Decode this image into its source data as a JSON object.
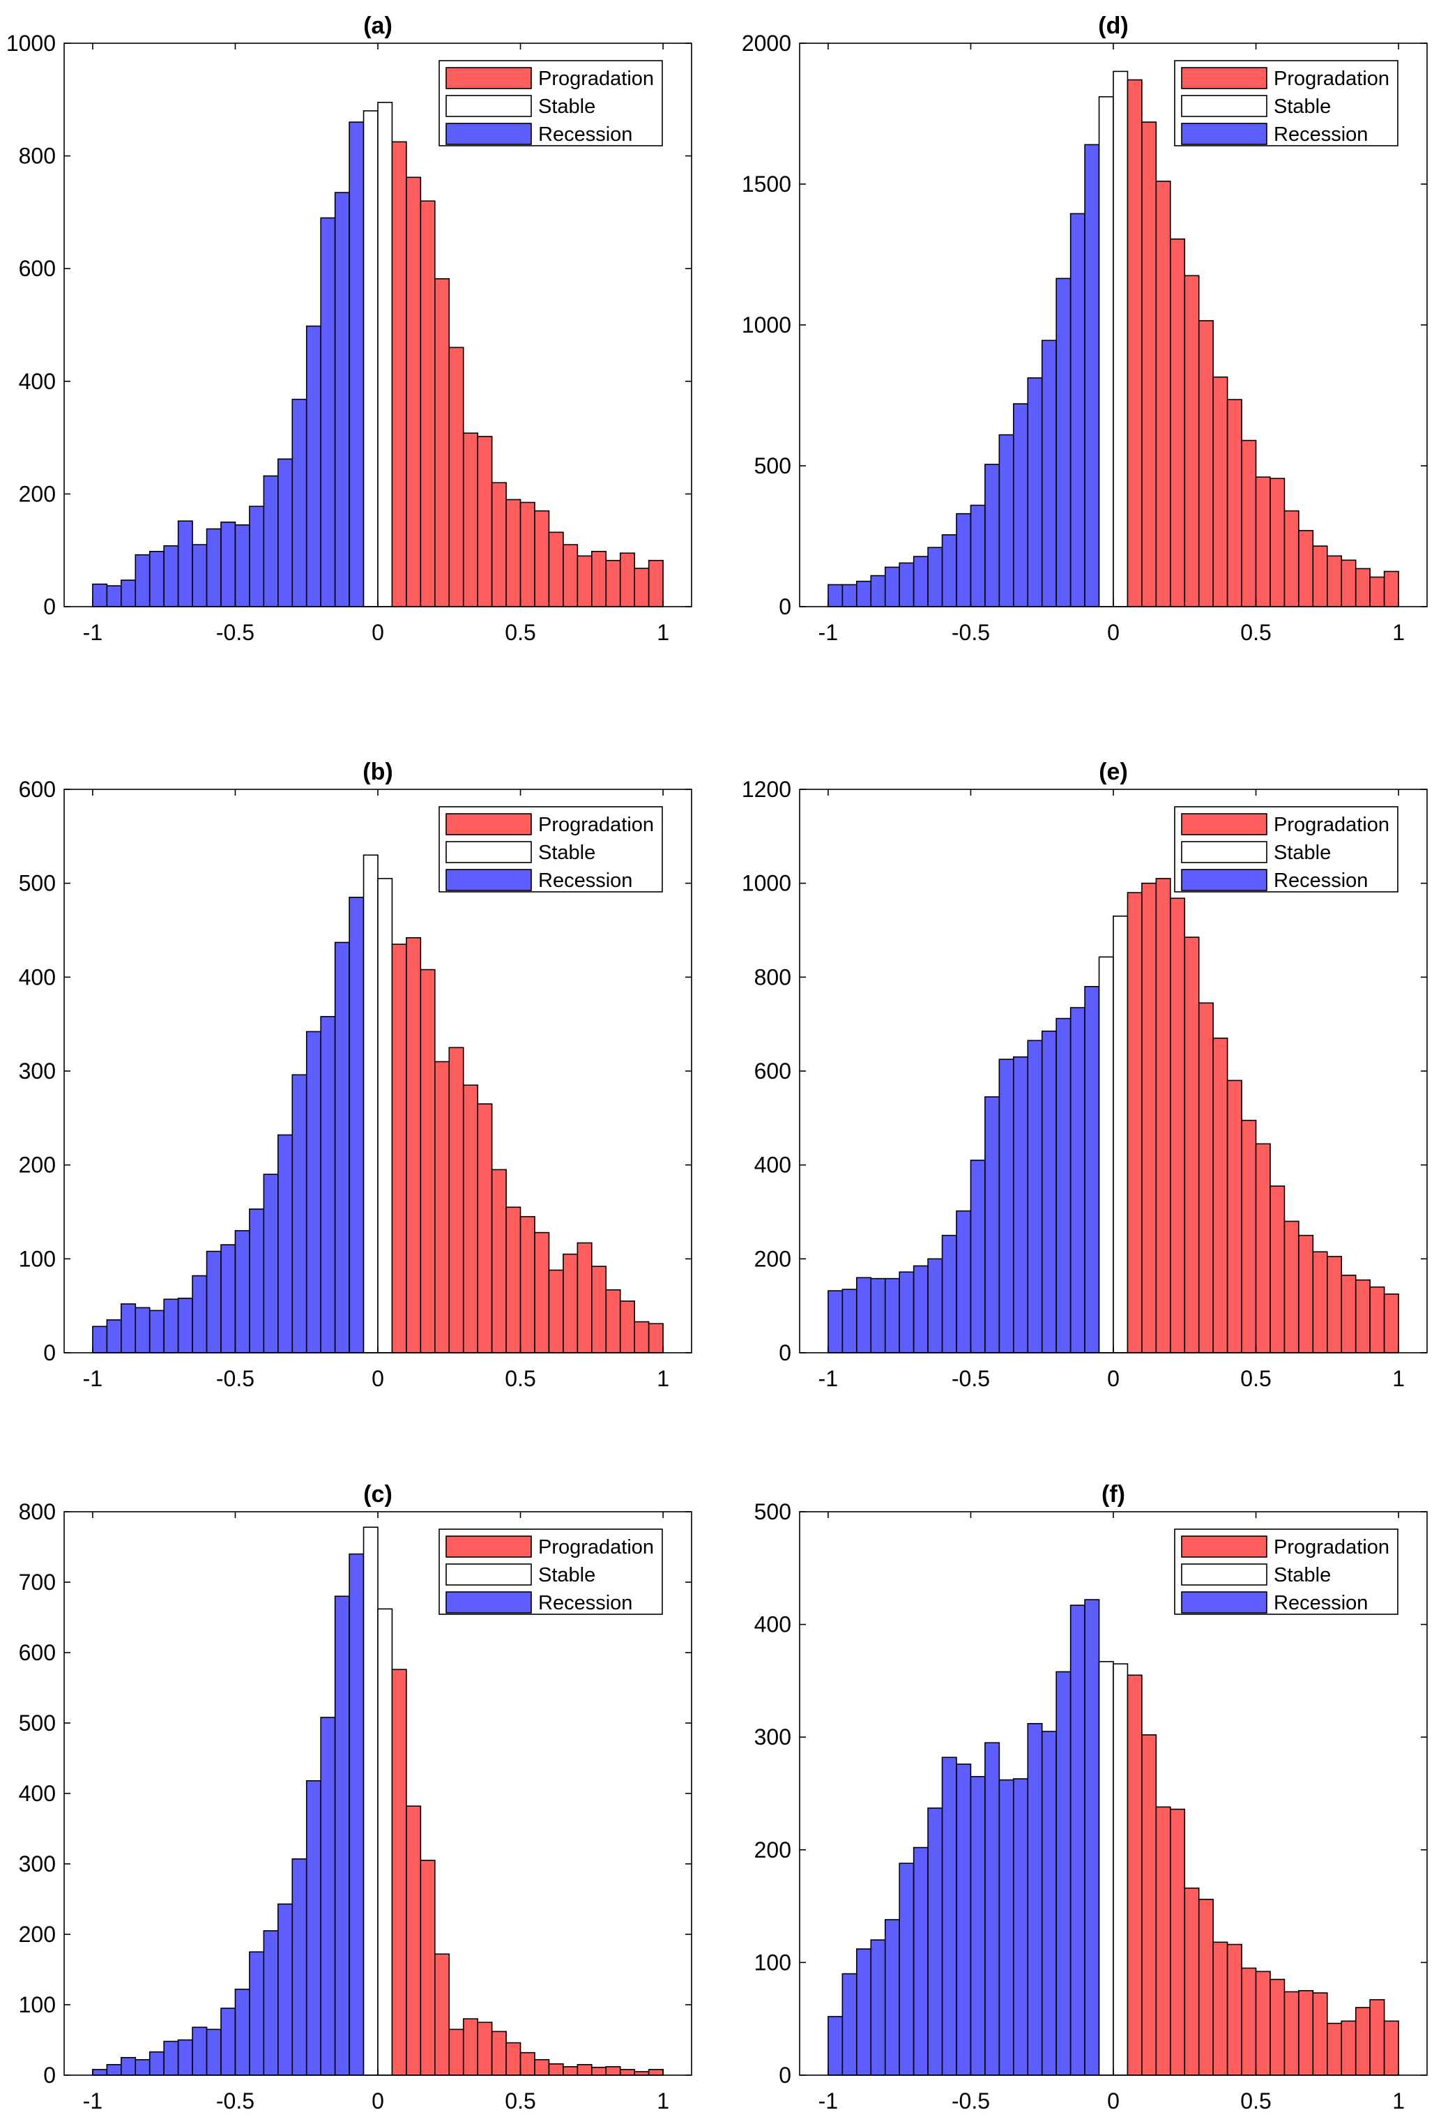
{
  "chart_data": [
    {
      "id": "a",
      "type": "bar",
      "title": "(a)",
      "xlabel": "",
      "ylabel": "",
      "xlim": [
        -1.1,
        1.1
      ],
      "ylim": [
        0,
        1000
      ],
      "xticks": [
        "-1",
        "-0.5",
        "0",
        "0.5",
        "1"
      ],
      "yticks": [
        "0",
        "200",
        "400",
        "600",
        "800",
        "1000"
      ],
      "ytick_values": [
        0,
        200,
        400,
        600,
        800,
        1000
      ],
      "bin_start": -1.0,
      "bin_width": 0.05,
      "values": [
        40,
        37,
        47,
        92,
        98,
        108,
        152,
        110,
        138,
        150,
        145,
        178,
        232,
        262,
        368,
        498,
        690,
        735,
        860,
        880,
        895,
        825,
        762,
        720,
        582,
        460,
        308,
        302,
        220,
        190,
        185,
        170,
        132,
        110,
        90,
        98,
        82,
        95,
        68,
        82
      ],
      "categories": [
        "Recession",
        "Recession",
        "Recession",
        "Recession",
        "Recession",
        "Recession",
        "Recession",
        "Recession",
        "Recession",
        "Recession",
        "Recession",
        "Recession",
        "Recession",
        "Recession",
        "Recession",
        "Recession",
        "Recession",
        "Recession",
        "Recession",
        "Stable",
        "Stable",
        "Progradation",
        "Progradation",
        "Progradation",
        "Progradation",
        "Progradation",
        "Progradation",
        "Progradation",
        "Progradation",
        "Progradation",
        "Progradation",
        "Progradation",
        "Progradation",
        "Progradation",
        "Progradation",
        "Progradation",
        "Progradation",
        "Progradation",
        "Progradation",
        "Progradation"
      ],
      "legend": [
        "Progradation",
        "Stable",
        "Recession"
      ],
      "legend_position": "top-right",
      "grid": false
    },
    {
      "id": "d",
      "type": "bar",
      "title": "(d)",
      "xlabel": "",
      "ylabel": "",
      "xlim": [
        -1.1,
        1.1
      ],
      "ylim": [
        0,
        2000
      ],
      "xticks": [
        "-1",
        "-0.5",
        "0",
        "0.5",
        "1"
      ],
      "yticks": [
        "0",
        "500",
        "1000",
        "1500",
        "2000"
      ],
      "ytick_values": [
        0,
        500,
        1000,
        1500,
        2000
      ],
      "bin_start": -1.0,
      "bin_width": 0.05,
      "values": [
        78,
        78,
        90,
        110,
        140,
        155,
        178,
        210,
        255,
        330,
        360,
        505,
        610,
        720,
        812,
        945,
        1165,
        1395,
        1640,
        1810,
        1900,
        1870,
        1720,
        1510,
        1305,
        1175,
        1015,
        815,
        735,
        590,
        460,
        455,
        340,
        270,
        215,
        180,
        165,
        135,
        105,
        125
      ],
      "categories": [
        "Recession",
        "Recession",
        "Recession",
        "Recession",
        "Recession",
        "Recession",
        "Recession",
        "Recession",
        "Recession",
        "Recession",
        "Recession",
        "Recession",
        "Recession",
        "Recession",
        "Recession",
        "Recession",
        "Recession",
        "Recession",
        "Recession",
        "Stable",
        "Stable",
        "Progradation",
        "Progradation",
        "Progradation",
        "Progradation",
        "Progradation",
        "Progradation",
        "Progradation",
        "Progradation",
        "Progradation",
        "Progradation",
        "Progradation",
        "Progradation",
        "Progradation",
        "Progradation",
        "Progradation",
        "Progradation",
        "Progradation",
        "Progradation",
        "Progradation"
      ],
      "legend": [
        "Progradation",
        "Stable",
        "Recession"
      ],
      "legend_position": "top-right",
      "grid": false
    },
    {
      "id": "b",
      "type": "bar",
      "title": "(b)",
      "xlabel": "",
      "ylabel": "",
      "xlim": [
        -1.1,
        1.1
      ],
      "ylim": [
        0,
        600
      ],
      "xticks": [
        "-1",
        "-0.5",
        "0",
        "0.5",
        "1"
      ],
      "yticks": [
        "0",
        "100",
        "200",
        "300",
        "400",
        "500",
        "600"
      ],
      "ytick_values": [
        0,
        100,
        200,
        300,
        400,
        500,
        600
      ],
      "bin_start": -1.0,
      "bin_width": 0.05,
      "values": [
        28,
        35,
        52,
        48,
        45,
        57,
        58,
        82,
        108,
        115,
        130,
        153,
        190,
        232,
        296,
        342,
        358,
        437,
        485,
        530,
        505,
        435,
        442,
        408,
        310,
        325,
        285,
        265,
        195,
        155,
        145,
        128,
        88,
        105,
        117,
        92,
        67,
        55,
        33,
        31
      ],
      "categories": [
        "Recession",
        "Recession",
        "Recession",
        "Recession",
        "Recession",
        "Recession",
        "Recession",
        "Recession",
        "Recession",
        "Recession",
        "Recession",
        "Recession",
        "Recession",
        "Recession",
        "Recession",
        "Recession",
        "Recession",
        "Recession",
        "Recession",
        "Stable",
        "Stable",
        "Progradation",
        "Progradation",
        "Progradation",
        "Progradation",
        "Progradation",
        "Progradation",
        "Progradation",
        "Progradation",
        "Progradation",
        "Progradation",
        "Progradation",
        "Progradation",
        "Progradation",
        "Progradation",
        "Progradation",
        "Progradation",
        "Progradation",
        "Progradation",
        "Progradation"
      ],
      "legend": [
        "Progradation",
        "Stable",
        "Recession"
      ],
      "legend_position": "top-right",
      "grid": false
    },
    {
      "id": "e",
      "type": "bar",
      "title": "(e)",
      "xlabel": "",
      "ylabel": "",
      "xlim": [
        -1.1,
        1.1
      ],
      "ylim": [
        0,
        1200
      ],
      "xticks": [
        "-1",
        "-0.5",
        "0",
        "0.5",
        "1"
      ],
      "yticks": [
        "0",
        "200",
        "400",
        "600",
        "800",
        "1000",
        "1200"
      ],
      "ytick_values": [
        0,
        200,
        400,
        600,
        800,
        1000,
        1200
      ],
      "bin_start": -1.0,
      "bin_width": 0.05,
      "values": [
        132,
        135,
        160,
        158,
        158,
        172,
        185,
        200,
        250,
        302,
        410,
        545,
        625,
        630,
        665,
        685,
        712,
        735,
        780,
        843,
        930,
        980,
        1000,
        1010,
        968,
        885,
        745,
        670,
        580,
        495,
        445,
        355,
        280,
        250,
        215,
        205,
        165,
        155,
        140,
        125
      ],
      "categories": [
        "Recession",
        "Recession",
        "Recession",
        "Recession",
        "Recession",
        "Recession",
        "Recession",
        "Recession",
        "Recession",
        "Recession",
        "Recession",
        "Recession",
        "Recession",
        "Recession",
        "Recession",
        "Recession",
        "Recession",
        "Recession",
        "Recession",
        "Stable",
        "Stable",
        "Progradation",
        "Progradation",
        "Progradation",
        "Progradation",
        "Progradation",
        "Progradation",
        "Progradation",
        "Progradation",
        "Progradation",
        "Progradation",
        "Progradation",
        "Progradation",
        "Progradation",
        "Progradation",
        "Progradation",
        "Progradation",
        "Progradation",
        "Progradation",
        "Progradation"
      ],
      "legend": [
        "Progradation",
        "Stable",
        "Recession"
      ],
      "legend_position": "top-right",
      "grid": false
    },
    {
      "id": "c",
      "type": "bar",
      "title": "(c)",
      "xlabel": "",
      "ylabel": "",
      "xlim": [
        -1.1,
        1.1
      ],
      "ylim": [
        0,
        800
      ],
      "xticks": [
        "-1",
        "-0.5",
        "0",
        "0.5",
        "1"
      ],
      "yticks": [
        "0",
        "100",
        "200",
        "300",
        "400",
        "500",
        "600",
        "700",
        "800"
      ],
      "ytick_values": [
        0,
        100,
        200,
        300,
        400,
        500,
        600,
        700,
        800
      ],
      "bin_start": -1.0,
      "bin_width": 0.05,
      "values": [
        8,
        15,
        25,
        22,
        33,
        48,
        50,
        68,
        65,
        95,
        122,
        175,
        205,
        243,
        307,
        418,
        508,
        680,
        740,
        778,
        662,
        576,
        382,
        305,
        172,
        65,
        80,
        75,
        62,
        46,
        32,
        22,
        16,
        12,
        15,
        11,
        12,
        8,
        5,
        8
      ],
      "categories": [
        "Recession",
        "Recession",
        "Recession",
        "Recession",
        "Recession",
        "Recession",
        "Recession",
        "Recession",
        "Recession",
        "Recession",
        "Recession",
        "Recession",
        "Recession",
        "Recession",
        "Recession",
        "Recession",
        "Recession",
        "Recession",
        "Recession",
        "Stable",
        "Stable",
        "Progradation",
        "Progradation",
        "Progradation",
        "Progradation",
        "Progradation",
        "Progradation",
        "Progradation",
        "Progradation",
        "Progradation",
        "Progradation",
        "Progradation",
        "Progradation",
        "Progradation",
        "Progradation",
        "Progradation",
        "Progradation",
        "Progradation",
        "Progradation",
        "Progradation"
      ],
      "legend": [
        "Progradation",
        "Stable",
        "Recession"
      ],
      "legend_position": "top-right",
      "grid": false
    },
    {
      "id": "f",
      "type": "bar",
      "title": "(f)",
      "xlabel": "",
      "ylabel": "",
      "xlim": [
        -1.1,
        1.1
      ],
      "ylim": [
        0,
        500
      ],
      "xticks": [
        "-1",
        "-0.5",
        "0",
        "0.5",
        "1"
      ],
      "yticks": [
        "0",
        "100",
        "200",
        "300",
        "400",
        "500"
      ],
      "ytick_values": [
        0,
        100,
        200,
        300,
        400,
        500
      ],
      "bin_start": -1.0,
      "bin_width": 0.05,
      "values": [
        52,
        90,
        112,
        120,
        138,
        188,
        202,
        237,
        282,
        276,
        265,
        295,
        262,
        263,
        312,
        305,
        358,
        417,
        422,
        367,
        365,
        355,
        302,
        238,
        236,
        166,
        156,
        118,
        116,
        95,
        92,
        85,
        74,
        75,
        73,
        46,
        48,
        60,
        67,
        48
      ],
      "categories": [
        "Recession",
        "Recession",
        "Recession",
        "Recession",
        "Recession",
        "Recession",
        "Recession",
        "Recession",
        "Recession",
        "Recession",
        "Recession",
        "Recession",
        "Recession",
        "Recession",
        "Recession",
        "Recession",
        "Recession",
        "Recession",
        "Recession",
        "Stable",
        "Stable",
        "Progradation",
        "Progradation",
        "Progradation",
        "Progradation",
        "Progradation",
        "Progradation",
        "Progradation",
        "Progradation",
        "Progradation",
        "Progradation",
        "Progradation",
        "Progradation",
        "Progradation",
        "Progradation",
        "Progradation",
        "Progradation",
        "Progradation",
        "Progradation",
        "Progradation"
      ],
      "legend": [
        "Progradation",
        "Stable",
        "Recession"
      ],
      "legend_position": "top-right",
      "grid": false
    }
  ],
  "colors": {
    "Progradation": "#ff5e5e",
    "Stable": "#ffffff",
    "Recession": "#5e5eff",
    "edge": "#000000"
  }
}
